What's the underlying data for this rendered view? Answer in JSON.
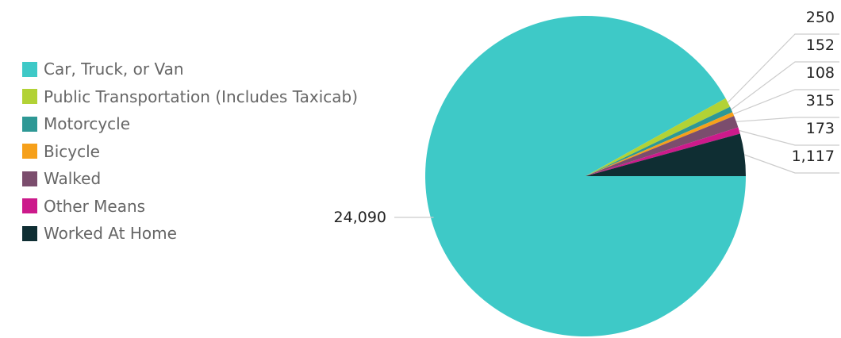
{
  "chart_data": {
    "type": "pie",
    "title": "",
    "legend_position": "left",
    "slices": [
      {
        "name": "Car, Truck, or Van",
        "value": 24090,
        "label": "24,090",
        "color": "#3ec9c7"
      },
      {
        "name": "Public Transportation (Includes Taxicab)",
        "value": 250,
        "label": "250",
        "color": "#b2d235"
      },
      {
        "name": "Motorcycle",
        "value": 152,
        "label": "152",
        "color": "#2e9895"
      },
      {
        "name": "Bicycle",
        "value": 108,
        "label": "108",
        "color": "#f6a01a"
      },
      {
        "name": "Walked",
        "value": 315,
        "label": "315",
        "color": "#7b4d6d"
      },
      {
        "name": "Other Means",
        "value": 173,
        "label": "173",
        "color": "#cc1a8b"
      },
      {
        "name": "Worked At Home",
        "value": 1117,
        "label": "1,117",
        "color": "#0f2e33"
      }
    ]
  }
}
